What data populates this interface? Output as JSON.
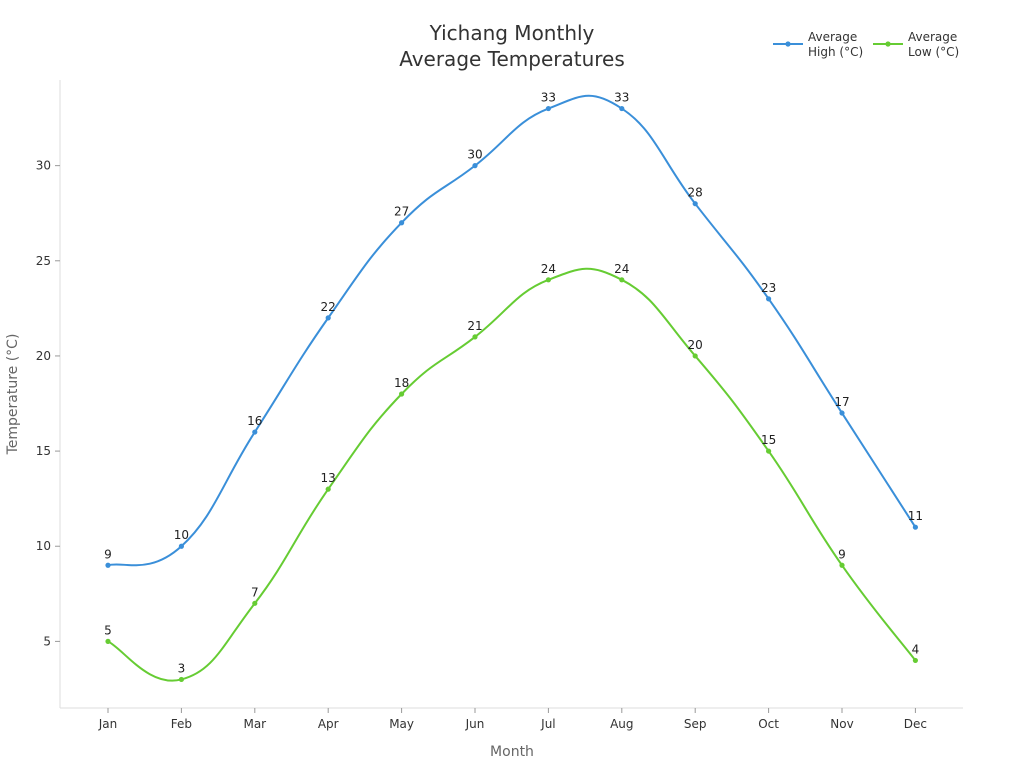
{
  "chart_data": {
    "type": "line",
    "title_lines": [
      "Yichang Monthly",
      "Average Temperatures"
    ],
    "xlabel": "Month",
    "ylabel": "Temperature (°C)",
    "categories": [
      "Jan",
      "Feb",
      "Mar",
      "Apr",
      "May",
      "Jun",
      "Jul",
      "Aug",
      "Sep",
      "Oct",
      "Nov",
      "Dec"
    ],
    "yticks": [
      5,
      10,
      15,
      20,
      25,
      30
    ],
    "ylim": [
      1.5,
      34.5
    ],
    "grid": false,
    "legend_position": "top-right",
    "series": [
      {
        "name_lines": [
          "Average",
          "High (°C)"
        ],
        "color": "#3a8fd9",
        "values": [
          9,
          10,
          16,
          22,
          27,
          30,
          33,
          33,
          28,
          23,
          17,
          11
        ]
      },
      {
        "name_lines": [
          "Average",
          "Low (°C)"
        ],
        "color": "#66cc33",
        "values": [
          5,
          3,
          7,
          13,
          18,
          21,
          24,
          24,
          20,
          15,
          9,
          4
        ]
      }
    ]
  }
}
